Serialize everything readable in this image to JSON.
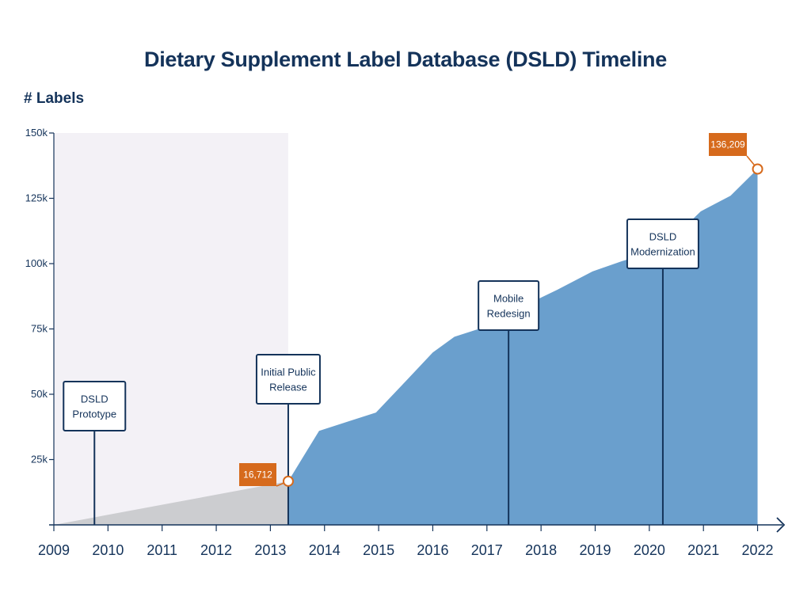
{
  "title": "Dietary Supplement Label Database (DSLD) Timeline",
  "chart_data": {
    "type": "area",
    "title": "Dietary Supplement Label Database (DSLD) Timeline",
    "ylabel": "# Labels",
    "xlabel": "",
    "xlim": [
      2009,
      2022.5
    ],
    "ylim": [
      0,
      150000
    ],
    "yticks": [
      {
        "value": 25000,
        "label": "25k"
      },
      {
        "value": 50000,
        "label": "50k"
      },
      {
        "value": 75000,
        "label": "75k"
      },
      {
        "value": 100000,
        "label": "100k"
      },
      {
        "value": 125000,
        "label": "125k"
      },
      {
        "value": 150000,
        "label": "150k"
      }
    ],
    "xticks": [
      "2009",
      "2010",
      "2011",
      "2012",
      "2013",
      "2014",
      "2015",
      "2016",
      "2017",
      "2018",
      "2019",
      "2020",
      "2021",
      "2022"
    ],
    "series": [
      {
        "color": "#6a9fcd",
        "points": [
          [
            2013.33,
            16712
          ],
          [
            2013.9,
            36000
          ],
          [
            2014.5,
            40000
          ],
          [
            2014.95,
            43000
          ],
          [
            2015.5,
            55000
          ],
          [
            2016.0,
            66000
          ],
          [
            2016.4,
            72000
          ],
          [
            2016.85,
            75000
          ],
          [
            2017.3,
            80000
          ],
          [
            2017.7,
            84000
          ],
          [
            2018.3,
            90000
          ],
          [
            2018.95,
            97000
          ],
          [
            2019.5,
            101000
          ],
          [
            2020.0,
            104000
          ],
          [
            2020.5,
            111000
          ],
          [
            2020.95,
            120000
          ],
          [
            2021.5,
            126000
          ],
          [
            2022.0,
            136209
          ]
        ]
      },
      {
        "color": "#cccdd0",
        "points": [
          [
            2009.0,
            0
          ],
          [
            2013.33,
            16712
          ]
        ]
      }
    ],
    "shaded_region": {
      "x_start": 2009,
      "x_end": 2013.33,
      "color": "#f3f1f6"
    },
    "milestones": [
      {
        "year": 2009.75,
        "label_lines": [
          "DSLD",
          "Prototype"
        ]
      },
      {
        "year": 2013.33,
        "label_lines": [
          "Initial Public",
          "Release"
        ]
      },
      {
        "year": 2017.4,
        "label_lines": [
          "Mobile",
          "Redesign"
        ]
      },
      {
        "year": 2020.25,
        "label_lines": [
          "DSLD",
          "Modernization"
        ]
      }
    ],
    "callouts": [
      {
        "year": 2013.33,
        "value": 16712,
        "label": "16,712"
      },
      {
        "year": 2022.0,
        "value": 136209,
        "label": "136,209"
      }
    ],
    "colors": {
      "axis": "#14335a",
      "callout": "#d66a1c",
      "area": "#6a9fcd",
      "pre_release": "#cccdd0"
    }
  }
}
